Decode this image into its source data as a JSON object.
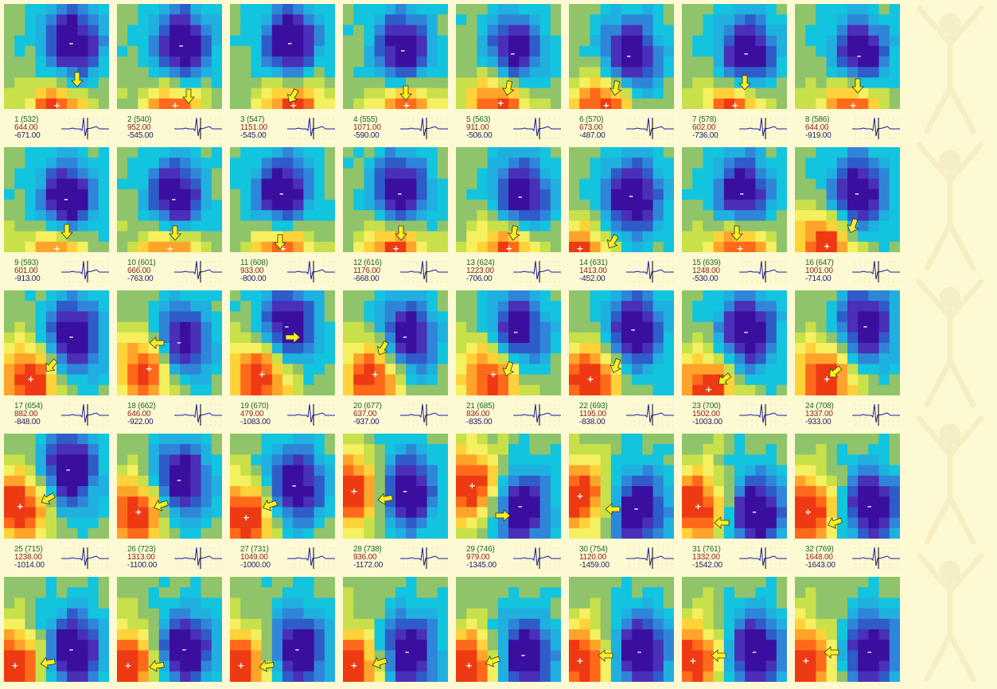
{
  "colors": {
    "background": "#fdf9d3",
    "frame_label": "#1d6a1d",
    "max_value": "#8a1f1f",
    "min_value": "#1b1b6a",
    "contour_scale": [
      "#3a0fa0",
      "#4a2fb8",
      "#2f5cc8",
      "#2f86d8",
      "#1fb0e0",
      "#12c4de",
      "#8fc46a",
      "#c8e04a",
      "#f5f060",
      "#ffd23a",
      "#ffa42a",
      "#ff6a1a",
      "#ee3a12"
    ],
    "arrow": "#f8f020"
  },
  "icons": {
    "marker_positive": "plus-marker-icon",
    "marker_negative": "minus-marker-icon",
    "direction": "arrow-icon",
    "ecg": "ecg-thumbnail-icon"
  },
  "maps": [
    {
      "frame": "1 (532)",
      "max": "644.00",
      "min": "-671.00"
    },
    {
      "frame": "2 (540)",
      "max": "952.00",
      "min": "-545.00"
    },
    {
      "frame": "3 (547)",
      "max": "1151.00",
      "min": "-545.00"
    },
    {
      "frame": "4 (555)",
      "max": "1071.00",
      "min": "-590.00"
    },
    {
      "frame": "5 (563)",
      "max": "911.00",
      "min": "-506.00"
    },
    {
      "frame": "6 (570)",
      "max": "673.00",
      "min": "-487.00"
    },
    {
      "frame": "7 (578)",
      "max": "602.00",
      "min": "-736.00"
    },
    {
      "frame": "8 (586)",
      "max": "644.00",
      "min": "-919.00"
    },
    {
      "frame": "9 (593)",
      "max": "601.00",
      "min": "-913.00"
    },
    {
      "frame": "10 (601)",
      "max": "666.00",
      "min": "-763.00"
    },
    {
      "frame": "11 (608)",
      "max": "933.00",
      "min": "-800.00"
    },
    {
      "frame": "12 (616)",
      "max": "1176.00",
      "min": "-668.00"
    },
    {
      "frame": "13 (624)",
      "max": "1223.00",
      "min": "-706.00"
    },
    {
      "frame": "14 (631)",
      "max": "1413.00",
      "min": "-452.00"
    },
    {
      "frame": "15 (639)",
      "max": "1248.00",
      "min": "-530.00"
    },
    {
      "frame": "16 (647)",
      "max": "1001.00",
      "min": "-714.00"
    },
    {
      "frame": "17 (654)",
      "max": "882.00",
      "min": "-848.00"
    },
    {
      "frame": "18 (662)",
      "max": "646.00",
      "min": "-922.00"
    },
    {
      "frame": "19 (670)",
      "max": "479.00",
      "min": "-1083.00"
    },
    {
      "frame": "20 (677)",
      "max": "637.00",
      "min": "-937.00"
    },
    {
      "frame": "21 (685)",
      "max": "836.00",
      "min": "-835.00"
    },
    {
      "frame": "22 (693)",
      "max": "1195.00",
      "min": "-838.00"
    },
    {
      "frame": "23 (700)",
      "max": "1502.00",
      "min": "-1003.00"
    },
    {
      "frame": "24 (708)",
      "max": "1337.00",
      "min": "-933.00"
    },
    {
      "frame": "25 (715)",
      "max": "1238.00",
      "min": "-1014.00"
    },
    {
      "frame": "26 (723)",
      "max": "1313.00",
      "min": "-1100.00"
    },
    {
      "frame": "27 (731)",
      "max": "1049.00",
      "min": "-1000.00"
    },
    {
      "frame": "28 (738)",
      "max": "936.00",
      "min": "-1172.00"
    },
    {
      "frame": "29 (746)",
      "max": "979.00",
      "min": "-1345.00"
    },
    {
      "frame": "30 (754)",
      "max": "1120.00",
      "min": "-1459.00"
    },
    {
      "frame": "31 (761)",
      "max": "1332.00",
      "min": "-1542.00"
    },
    {
      "frame": "32 (769)",
      "max": "1648.00",
      "min": "-1643.00"
    },
    {
      "frame": "",
      "max": "",
      "min": ""
    },
    {
      "frame": "",
      "max": "",
      "min": ""
    },
    {
      "frame": "",
      "max": "",
      "min": ""
    },
    {
      "frame": "",
      "max": "",
      "min": ""
    },
    {
      "frame": "",
      "max": "",
      "min": ""
    },
    {
      "frame": "",
      "max": "",
      "min": ""
    },
    {
      "frame": "",
      "max": "",
      "min": ""
    },
    {
      "frame": "",
      "max": "",
      "min": ""
    }
  ]
}
